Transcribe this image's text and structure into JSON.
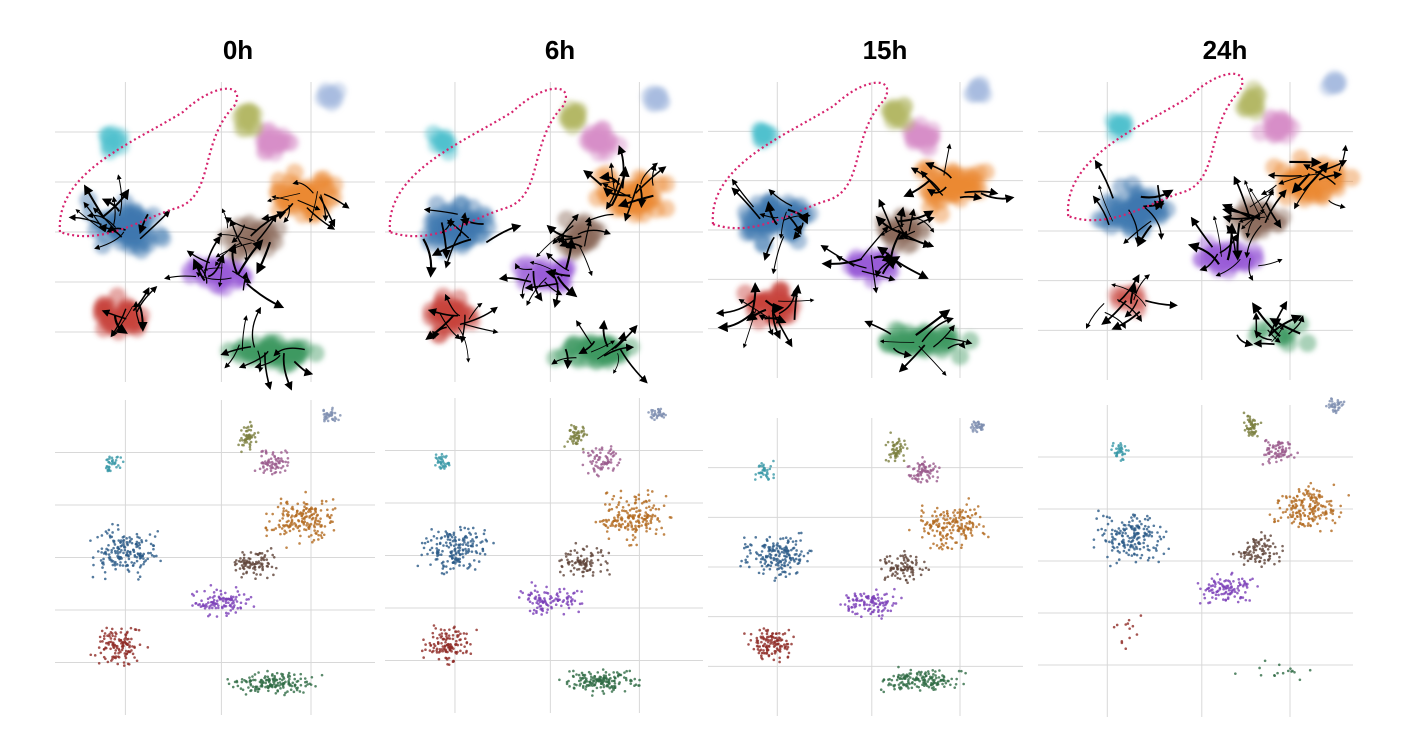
{
  "panels": [
    {
      "title": "0h"
    },
    {
      "title": "6h"
    },
    {
      "title": "15h"
    },
    {
      "title": "24h"
    }
  ]
}
